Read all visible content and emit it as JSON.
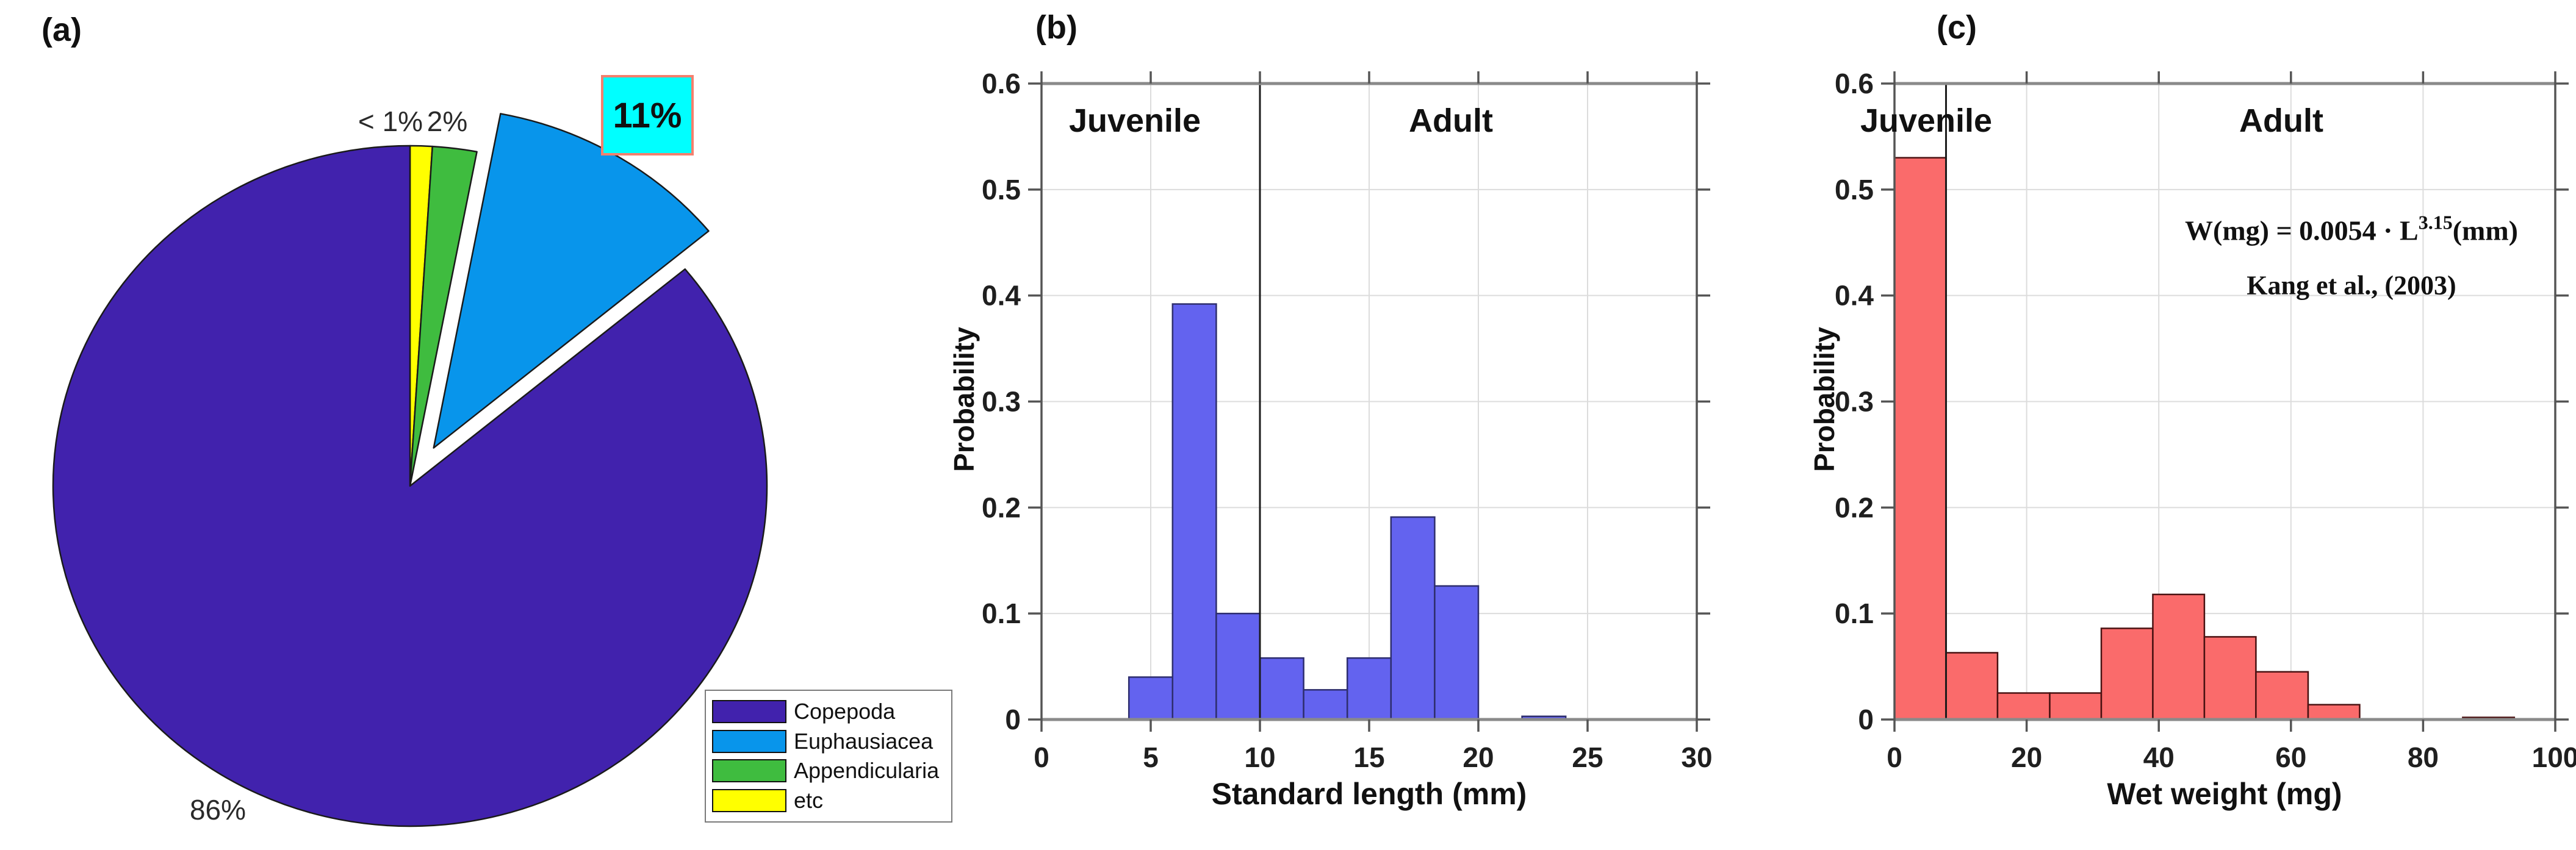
{
  "chart_data": [
    {
      "panel": "(a)",
      "type": "pie",
      "start_angle": "12-oclock",
      "direction": "clockwise",
      "slices": [
        {
          "label": "etc",
          "value_pct": 1,
          "display_label": "< 1%",
          "color": "#FFFF00",
          "explode": 0
        },
        {
          "label": "Appendicularia",
          "value_pct": 2,
          "display_label": "2%",
          "color": "#3FBC3F",
          "explode": 0
        },
        {
          "label": "Euphausiacea",
          "value_pct": 11,
          "display_label": "11%",
          "color": "#0895EB",
          "explode": 0.13
        },
        {
          "label": "Copepoda",
          "value_pct": 86,
          "display_label": "86%",
          "color": "#4122AD",
          "explode": 0
        }
      ],
      "callout": {
        "text": "11%",
        "fill": "#00FFFF",
        "border": "#F4806E"
      },
      "legend_order": [
        "Copepoda",
        "Euphausiacea",
        "Appendicularia",
        "etc"
      ],
      "outline_color": "#1a1a1a"
    },
    {
      "panel": "(b)",
      "type": "bar",
      "xlabel": "Standard length (mm)",
      "ylabel": "Probability",
      "xlim": [
        0,
        30
      ],
      "ylim": [
        0,
        0.6
      ],
      "xticks": [
        0,
        5,
        10,
        15,
        20,
        25,
        30
      ],
      "yticks": [
        0,
        0.1,
        0.2,
        0.3,
        0.4,
        0.5,
        0.6
      ],
      "grid": true,
      "bar_color": "#6363EF",
      "bar_edge_color": "#2E2E6E",
      "divider_x": 10,
      "zones": [
        {
          "text": "Juvenile"
        },
        {
          "text": "Adult"
        }
      ],
      "bins": [
        {
          "x0": 4,
          "x1": 6,
          "p": 0.04
        },
        {
          "x0": 6,
          "x1": 8,
          "p": 0.392
        },
        {
          "x0": 8,
          "x1": 10,
          "p": 0.1
        },
        {
          "x0": 10,
          "x1": 12,
          "p": 0.058
        },
        {
          "x0": 12,
          "x1": 14,
          "p": 0.028
        },
        {
          "x0": 14,
          "x1": 16,
          "p": 0.058
        },
        {
          "x0": 16,
          "x1": 18,
          "p": 0.191
        },
        {
          "x0": 18,
          "x1": 20,
          "p": 0.126
        },
        {
          "x0": 22,
          "x1": 24,
          "p": 0.003
        }
      ]
    },
    {
      "panel": "(c)",
      "type": "bar",
      "xlabel": "Wet weight (mg)",
      "ylabel": "Probability",
      "xlim": [
        0,
        100
      ],
      "ylim": [
        0,
        0.6
      ],
      "xticks": [
        0,
        20,
        40,
        60,
        80,
        100
      ],
      "yticks": [
        0,
        0.1,
        0.2,
        0.3,
        0.4,
        0.5,
        0.6
      ],
      "grid": true,
      "bar_color": "#FA6B6B",
      "bar_edge_color": "#4A1212",
      "divider_x": 7.8,
      "zones": [
        {
          "text": "Juvenile"
        },
        {
          "text": "Adult"
        }
      ],
      "equation": {
        "prefix": "W(mg) = 0.0054 · L",
        "superscript": "3.15",
        "suffix": "(mm)",
        "source": "Kang et al., (2003)"
      },
      "bins": [
        {
          "x0": 0,
          "x1": 7.8,
          "p": 0.53
        },
        {
          "x0": 7.8,
          "x1": 15.6,
          "p": 0.063
        },
        {
          "x0": 15.6,
          "x1": 23.5,
          "p": 0.025
        },
        {
          "x0": 23.5,
          "x1": 31.3,
          "p": 0.025
        },
        {
          "x0": 31.3,
          "x1": 39.1,
          "p": 0.086
        },
        {
          "x0": 39.1,
          "x1": 46.9,
          "p": 0.118
        },
        {
          "x0": 46.9,
          "x1": 54.7,
          "p": 0.078
        },
        {
          "x0": 54.7,
          "x1": 62.6,
          "p": 0.045
        },
        {
          "x0": 62.6,
          "x1": 70.4,
          "p": 0.014
        },
        {
          "x0": 86.0,
          "x1": 93.8,
          "p": 0.002
        }
      ]
    }
  ]
}
